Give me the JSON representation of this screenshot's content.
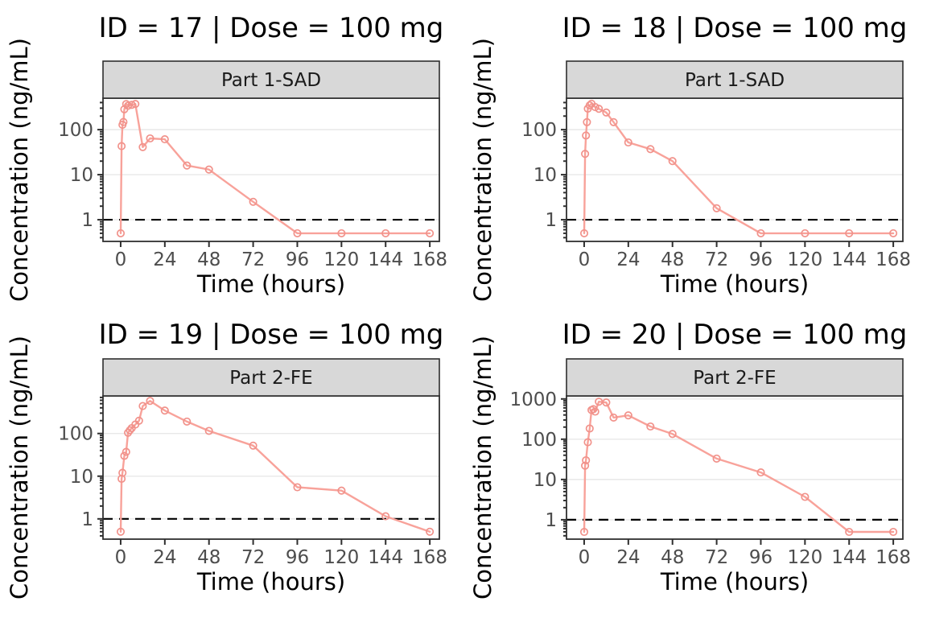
{
  "figure": {
    "background": "#FFFFFF",
    "colors": {
      "line": "#F8A29A",
      "marker": "#F1928B",
      "grid": "#E8E8E8",
      "axis": "#2F2F2F",
      "tick_label": "#4D4D4D",
      "strip_bg": "#D8D8D8",
      "strip_border": "#2F2F2F",
      "lloq_dash": "#000000",
      "panel_bg": "#FFFFFF"
    },
    "lloq_value": 1
  },
  "chart_data": [
    {
      "type": "line",
      "title": "ID = 17 | Dose = 100 mg",
      "strip": "Part 1-SAD",
      "xlabel": "Time (hours)",
      "ylabel": "Concentration (ng/mL)",
      "x_hours": [
        0,
        0.5,
        1,
        1.5,
        2,
        3,
        4,
        6,
        8,
        12,
        16,
        24,
        36,
        48,
        72,
        96,
        120,
        144,
        168
      ],
      "conc_ng_ml": [
        0.5,
        43,
        128,
        148,
        283,
        370,
        340,
        355,
        372,
        41,
        64,
        61,
        16,
        13,
        2.5,
        0.5,
        0.5,
        0.5,
        0.5
      ],
      "x_ticks": [
        0,
        24,
        48,
        72,
        96,
        120,
        144,
        168
      ],
      "y_ticks": [
        1,
        10,
        100
      ],
      "xlim": [
        -9.6,
        173.2
      ],
      "ylim": [
        0.33,
        500
      ],
      "yscale": "log10",
      "lloq": 1,
      "grid": "horizontal-major",
      "legend": "none"
    },
    {
      "type": "line",
      "title": "ID = 18 | Dose = 100 mg",
      "strip": "Part 1-SAD",
      "xlabel": "Time (hours)",
      "ylabel": "Concentration (ng/mL)",
      "x_hours": [
        0,
        0.5,
        1,
        1.5,
        2,
        3,
        4,
        6,
        8,
        12,
        16,
        24,
        36,
        48,
        72,
        96,
        120,
        144,
        168
      ],
      "conc_ng_ml": [
        0.5,
        29,
        74,
        147,
        293,
        347,
        376,
        317,
        290,
        240,
        147,
        52,
        37,
        20,
        1.8,
        0.5,
        0.5,
        0.5,
        0.5
      ],
      "x_ticks": [
        0,
        24,
        48,
        72,
        96,
        120,
        144,
        168
      ],
      "y_ticks": [
        1,
        10,
        100
      ],
      "xlim": [
        -9.6,
        173.2
      ],
      "ylim": [
        0.33,
        500
      ],
      "yscale": "log10",
      "lloq": 1,
      "grid": "horizontal-major",
      "legend": "none"
    },
    {
      "type": "line",
      "title": "ID = 19 | Dose = 100 mg",
      "strip": "Part 2-FE",
      "xlabel": "Time (hours)",
      "ylabel": "Concentration (ng/mL)",
      "x_hours": [
        0,
        0.5,
        1,
        2,
        3,
        4,
        5,
        6,
        8,
        10,
        12,
        16,
        24,
        36,
        48,
        72,
        96,
        120,
        144,
        168
      ],
      "conc_ng_ml": [
        0.5,
        8.7,
        12,
        30,
        37,
        104,
        119,
        134,
        162,
        200,
        440,
        580,
        345,
        190,
        115,
        52,
        5.5,
        4.6,
        1.15,
        0.5
      ],
      "x_ticks": [
        0,
        24,
        48,
        72,
        96,
        120,
        144,
        168
      ],
      "y_ticks": [
        1,
        10,
        100
      ],
      "xlim": [
        -9.6,
        173.2
      ],
      "ylim": [
        0.335,
        760
      ],
      "yscale": "log10",
      "lloq": 1,
      "grid": "horizontal-major",
      "legend": "none"
    },
    {
      "type": "line",
      "title": "ID = 20 | Dose = 100 mg",
      "strip": "Part 2-FE",
      "xlabel": "Time (hours)",
      "ylabel": "Concentration (ng/mL)",
      "x_hours": [
        0,
        0.5,
        1,
        2,
        3,
        4,
        5,
        6,
        8,
        12,
        16,
        24,
        36,
        48,
        72,
        96,
        120,
        144,
        168
      ],
      "conc_ng_ml": [
        0.5,
        22,
        30,
        84,
        185,
        530,
        560,
        485,
        855,
        815,
        345,
        390,
        207,
        135,
        33,
        15,
        3.7,
        0.5,
        0.5
      ],
      "x_ticks": [
        0,
        24,
        48,
        72,
        96,
        120,
        144,
        168
      ],
      "y_ticks": [
        1,
        10,
        100,
        1000
      ],
      "xlim": [
        -9.6,
        173.2
      ],
      "ylim": [
        0.33,
        1190
      ],
      "yscale": "log10",
      "lloq": 1,
      "grid": "horizontal-major",
      "legend": "none"
    }
  ]
}
